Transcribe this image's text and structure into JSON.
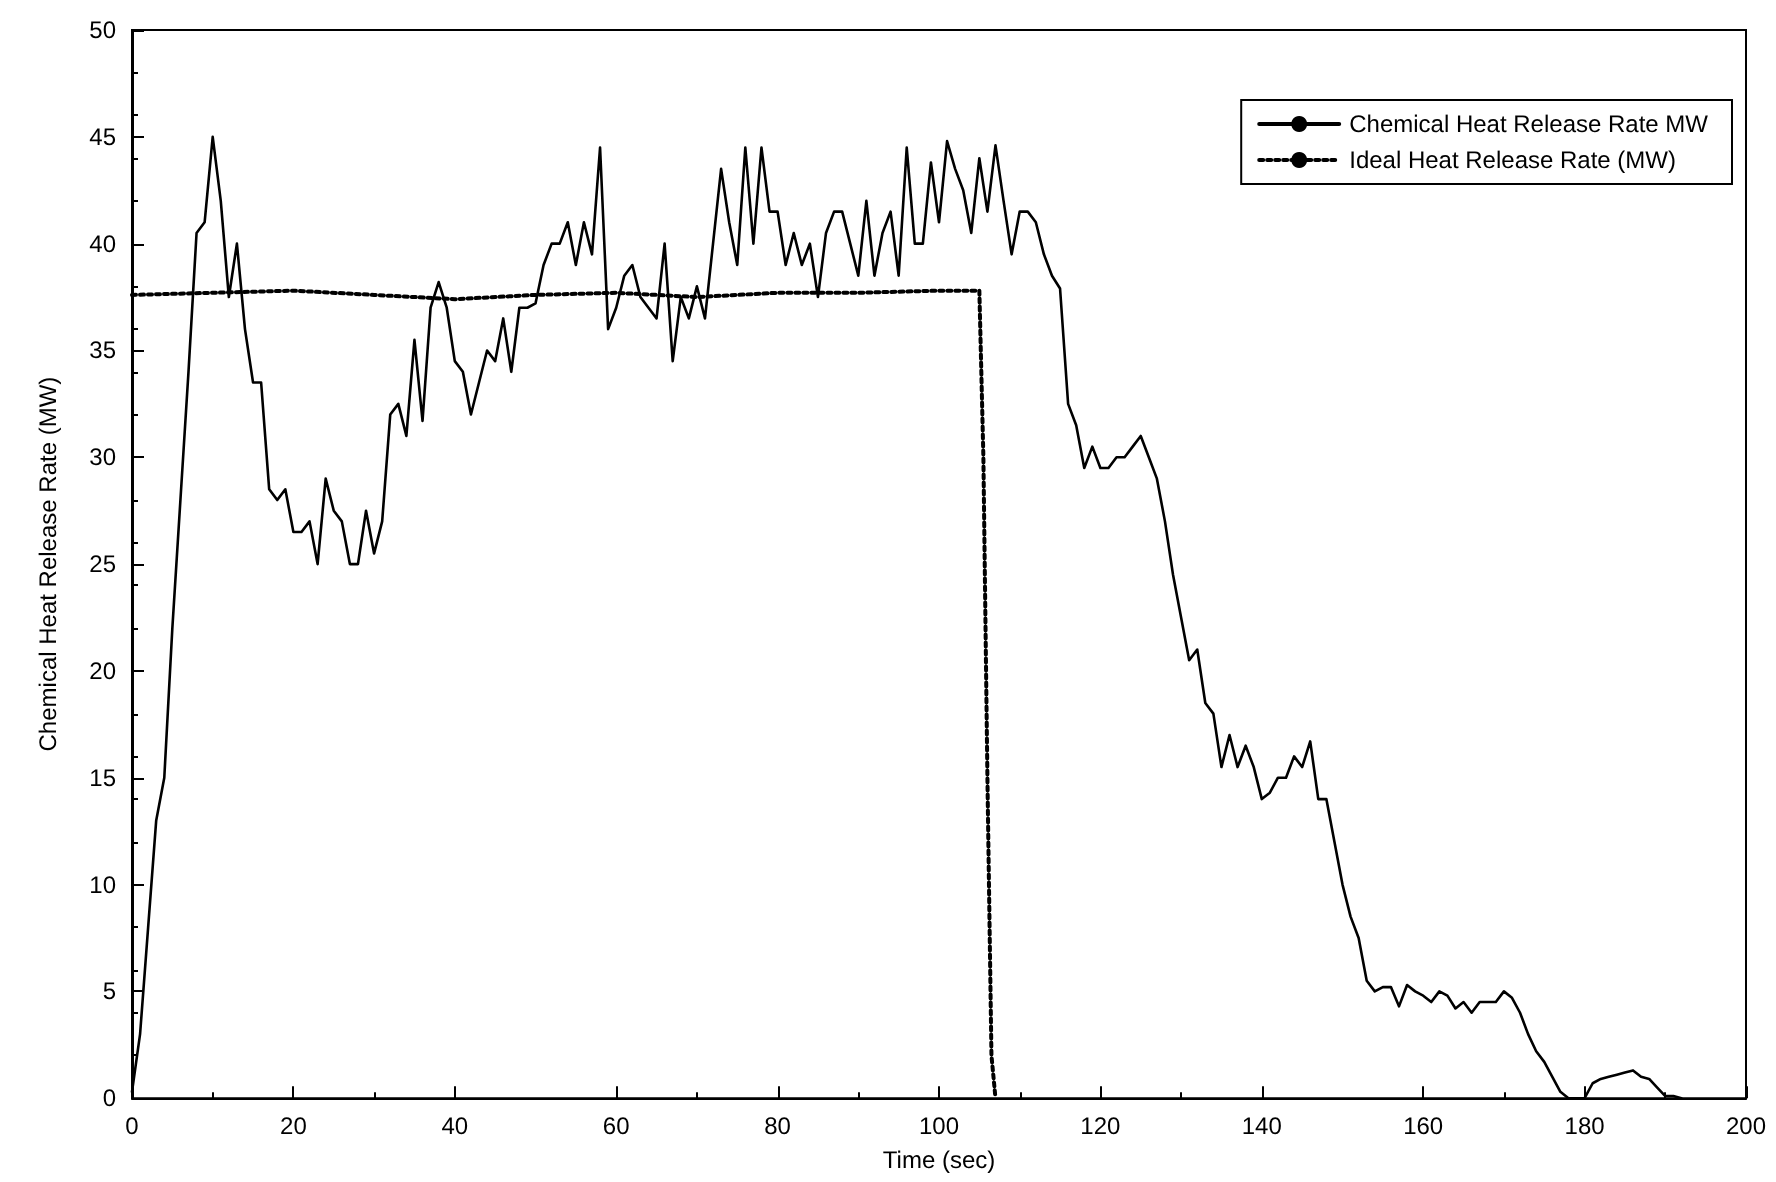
{
  "chart_data": {
    "type": "line",
    "xlabel": "Time (sec)",
    "ylabel": "Chemical Heat Release Rate (MW)",
    "xlim": [
      0,
      200
    ],
    "xticks": [
      0,
      20,
      40,
      60,
      80,
      100,
      120,
      140,
      160,
      180,
      200
    ],
    "ylim": [
      0,
      50
    ],
    "yticks": [
      0,
      5,
      10,
      15,
      20,
      25,
      30,
      35,
      40,
      45,
      50
    ],
    "grid": false,
    "legend": "top right",
    "marker": "none",
    "series": [
      {
        "name": "Chemical Heat Release Rate MW",
        "color": "#000000",
        "line_style": "solid",
        "x": [
          0,
          1,
          2,
          3,
          4,
          5,
          6,
          7,
          8,
          9,
          10,
          11,
          12,
          13,
          14,
          15,
          16,
          17,
          18,
          19,
          20,
          21,
          22,
          23,
          24,
          25,
          26,
          27,
          28,
          29,
          30,
          31,
          32,
          33,
          34,
          35,
          36,
          37,
          38,
          39,
          40,
          41,
          42,
          43,
          44,
          45,
          46,
          47,
          48,
          49,
          50,
          51,
          52,
          53,
          54,
          55,
          56,
          57,
          58,
          59,
          60,
          61,
          62,
          63,
          64,
          65,
          66,
          67,
          68,
          69,
          70,
          71,
          72,
          73,
          74,
          75,
          76,
          77,
          78,
          79,
          80,
          81,
          82,
          83,
          84,
          85,
          86,
          87,
          88,
          89,
          90,
          91,
          92,
          93,
          94,
          95,
          96,
          97,
          98,
          99,
          100,
          101,
          102,
          103,
          104,
          105,
          106,
          107,
          108,
          109,
          110,
          111,
          112,
          113,
          114,
          115,
          116,
          117,
          118,
          119,
          120,
          121,
          122,
          123,
          124,
          125,
          126,
          127,
          128,
          129,
          130,
          131,
          132,
          133,
          134,
          135,
          136,
          137,
          138,
          139,
          140,
          141,
          142,
          143,
          144,
          145,
          146,
          147,
          148,
          149,
          150,
          151,
          152,
          153,
          154,
          155,
          156,
          157,
          158,
          159,
          160,
          161,
          162,
          163,
          164,
          165,
          166,
          167,
          168,
          169,
          170,
          171,
          172,
          173,
          174,
          175,
          176,
          177,
          178,
          179,
          180,
          181,
          182,
          183,
          184,
          185,
          186,
          187,
          188,
          189,
          190,
          191,
          192
        ],
        "values": [
          0.3,
          3,
          8,
          13,
          15,
          22,
          28,
          34,
          40.5,
          41,
          45,
          42,
          37.5,
          40,
          36,
          33.5,
          33.5,
          28.5,
          28,
          28.5,
          26.5,
          26.5,
          27,
          25,
          29,
          27.5,
          27,
          25,
          25,
          27.5,
          25.5,
          27,
          32,
          32.5,
          31,
          35.5,
          31.7,
          37,
          38.2,
          37,
          34.5,
          34,
          32,
          33.5,
          35,
          34.5,
          36.5,
          34,
          37,
          37,
          37.2,
          39,
          40,
          40,
          41,
          39,
          41,
          39.5,
          44.5,
          36,
          37,
          38.5,
          39,
          37.5,
          37,
          36.5,
          40,
          34.5,
          37.5,
          36.5,
          38,
          36.5,
          40,
          43.5,
          41,
          39,
          44.5,
          40,
          44.5,
          41.5,
          41.5,
          39,
          40.5,
          39,
          40,
          37.5,
          40.5,
          41.5,
          41.5,
          40,
          38.5,
          42,
          38.5,
          40.5,
          41.5,
          38.5,
          44.5,
          40,
          40,
          43.8,
          41,
          44.8,
          43.5,
          42.5,
          40.5,
          44,
          41.5,
          44.6,
          42,
          39.5,
          41.5,
          41.5,
          41,
          39.5,
          38.5,
          37.9,
          32.5,
          31.5,
          29.5,
          30.5,
          29.5,
          29.5,
          30,
          30,
          30.5,
          31,
          30,
          29,
          27,
          24.5,
          22.5,
          20.5,
          21,
          18.5,
          18,
          15.5,
          17,
          15.5,
          16.5,
          15.5,
          14,
          14.3,
          15,
          15,
          16,
          15.5,
          16.7,
          14,
          14,
          12,
          10,
          8.5,
          7.5,
          5.5,
          5,
          5.2,
          5.2,
          4.3,
          5.3,
          5,
          4.8,
          4.5,
          5,
          4.8,
          4.2,
          4.5,
          4,
          4.5,
          4.5,
          4.5,
          5,
          4.7,
          4,
          3,
          2.2,
          1.7,
          1,
          0.3,
          0,
          0,
          0,
          0.7,
          0.9,
          1,
          1.1,
          1.2,
          1.3,
          1,
          0.9,
          0.5,
          0.1,
          0.1,
          0
        ]
      },
      {
        "name": "Ideal Heat Release Rate (MW)",
        "color": "#000000",
        "line_style": "dotted",
        "x": [
          0,
          10,
          20,
          30,
          40,
          50,
          60,
          70,
          80,
          90,
          100,
          105,
          105.5,
          106,
          106.5,
          107
        ],
        "values": [
          37.6,
          37.7,
          37.8,
          37.6,
          37.4,
          37.6,
          37.7,
          37.5,
          37.7,
          37.7,
          37.8,
          37.8,
          30,
          15,
          2,
          0
        ]
      }
    ]
  }
}
